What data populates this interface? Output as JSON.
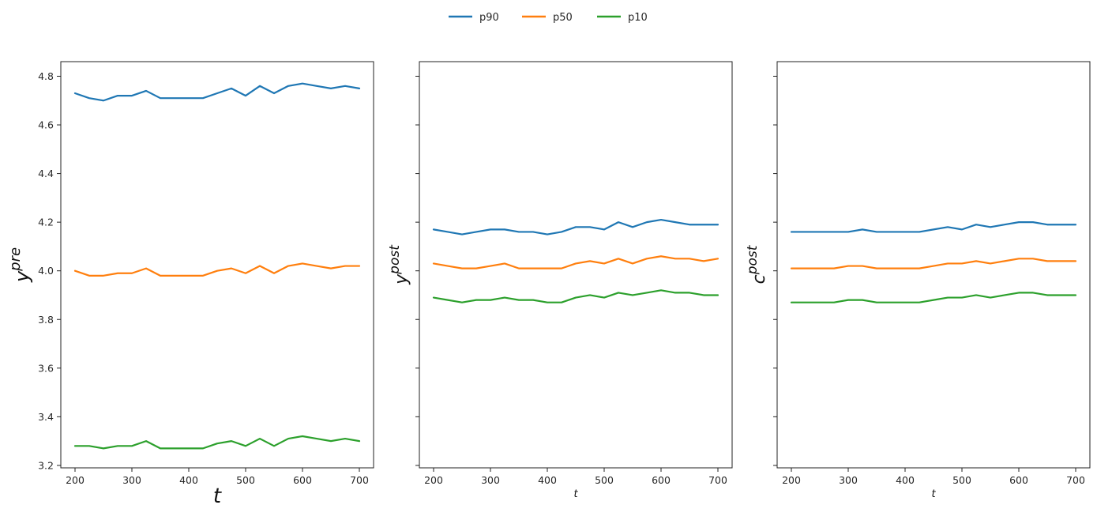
{
  "legend": {
    "placement": "top-center",
    "entries": [
      {
        "label": "p90",
        "color": "#1f77b4"
      },
      {
        "label": "p50",
        "color": "#ff7f0e"
      },
      {
        "label": "p10",
        "color": "#2ca02c"
      }
    ]
  },
  "chart_data": [
    {
      "type": "line",
      "ylabel": "y",
      "ylabel_sup": "pre",
      "xlabel": "t",
      "xlim": [
        175,
        725
      ],
      "ylim": [
        3.19,
        4.86
      ],
      "shared_y": true,
      "xticks": [
        200,
        300,
        400,
        500,
        600,
        700
      ],
      "yticks": [
        3.2,
        3.4,
        3.6,
        3.8,
        4.0,
        4.2,
        4.4,
        4.6,
        4.8
      ],
      "x": [
        200,
        225,
        250,
        275,
        300,
        325,
        350,
        375,
        400,
        425,
        450,
        475,
        500,
        525,
        550,
        575,
        600,
        625,
        650,
        675,
        700
      ],
      "series": [
        {
          "name": "p90",
          "color": "#1f77b4",
          "values": [
            4.73,
            4.71,
            4.7,
            4.72,
            4.72,
            4.74,
            4.71,
            4.71,
            4.71,
            4.71,
            4.73,
            4.75,
            4.72,
            4.76,
            4.73,
            4.76,
            4.77,
            4.76,
            4.75,
            4.76,
            4.75
          ]
        },
        {
          "name": "p50",
          "color": "#ff7f0e",
          "values": [
            4.0,
            3.98,
            3.98,
            3.99,
            3.99,
            4.01,
            3.98,
            3.98,
            3.98,
            3.98,
            4.0,
            4.01,
            3.99,
            4.02,
            3.99,
            4.02,
            4.03,
            4.02,
            4.01,
            4.02,
            4.02
          ]
        },
        {
          "name": "p10",
          "color": "#2ca02c",
          "values": [
            3.28,
            3.28,
            3.27,
            3.28,
            3.28,
            3.3,
            3.27,
            3.27,
            3.27,
            3.27,
            3.29,
            3.3,
            3.28,
            3.31,
            3.28,
            3.31,
            3.32,
            3.31,
            3.3,
            3.31,
            3.3
          ]
        }
      ]
    },
    {
      "type": "line",
      "ylabel": "y",
      "ylabel_sup": "post",
      "xlabel": "t",
      "xlim": [
        175,
        725
      ],
      "ylim": [
        3.19,
        4.86
      ],
      "shared_y": true,
      "xticks": [
        200,
        300,
        400,
        500,
        600,
        700
      ],
      "x": [
        200,
        225,
        250,
        275,
        300,
        325,
        350,
        375,
        400,
        425,
        450,
        475,
        500,
        525,
        550,
        575,
        600,
        625,
        650,
        675,
        700
      ],
      "series": [
        {
          "name": "p90",
          "color": "#1f77b4",
          "values": [
            4.17,
            4.16,
            4.15,
            4.16,
            4.17,
            4.17,
            4.16,
            4.16,
            4.15,
            4.16,
            4.18,
            4.18,
            4.17,
            4.2,
            4.18,
            4.2,
            4.21,
            4.2,
            4.19,
            4.19,
            4.19
          ]
        },
        {
          "name": "p50",
          "color": "#ff7f0e",
          "values": [
            4.03,
            4.02,
            4.01,
            4.01,
            4.02,
            4.03,
            4.01,
            4.01,
            4.01,
            4.01,
            4.03,
            4.04,
            4.03,
            4.05,
            4.03,
            4.05,
            4.06,
            4.05,
            4.05,
            4.04,
            4.05
          ]
        },
        {
          "name": "p10",
          "color": "#2ca02c",
          "values": [
            3.89,
            3.88,
            3.87,
            3.88,
            3.88,
            3.89,
            3.88,
            3.88,
            3.87,
            3.87,
            3.89,
            3.9,
            3.89,
            3.91,
            3.9,
            3.91,
            3.92,
            3.91,
            3.91,
            3.9,
            3.9
          ]
        }
      ]
    },
    {
      "type": "line",
      "ylabel": "c",
      "ylabel_sup": "post",
      "xlabel": "t",
      "xlim": [
        175,
        725
      ],
      "ylim": [
        3.19,
        4.86
      ],
      "shared_y": true,
      "xticks": [
        200,
        300,
        400,
        500,
        600,
        700
      ],
      "x": [
        200,
        225,
        250,
        275,
        300,
        325,
        350,
        375,
        400,
        425,
        450,
        475,
        500,
        525,
        550,
        575,
        600,
        625,
        650,
        675,
        700
      ],
      "series": [
        {
          "name": "p90",
          "color": "#1f77b4",
          "values": [
            4.16,
            4.16,
            4.16,
            4.16,
            4.16,
            4.17,
            4.16,
            4.16,
            4.16,
            4.16,
            4.17,
            4.18,
            4.17,
            4.19,
            4.18,
            4.19,
            4.2,
            4.2,
            4.19,
            4.19,
            4.19
          ]
        },
        {
          "name": "p50",
          "color": "#ff7f0e",
          "values": [
            4.01,
            4.01,
            4.01,
            4.01,
            4.02,
            4.02,
            4.01,
            4.01,
            4.01,
            4.01,
            4.02,
            4.03,
            4.03,
            4.04,
            4.03,
            4.04,
            4.05,
            4.05,
            4.04,
            4.04,
            4.04
          ]
        },
        {
          "name": "p10",
          "color": "#2ca02c",
          "values": [
            3.87,
            3.87,
            3.87,
            3.87,
            3.88,
            3.88,
            3.87,
            3.87,
            3.87,
            3.87,
            3.88,
            3.89,
            3.89,
            3.9,
            3.89,
            3.9,
            3.91,
            3.91,
            3.9,
            3.9,
            3.9
          ]
        }
      ]
    }
  ]
}
